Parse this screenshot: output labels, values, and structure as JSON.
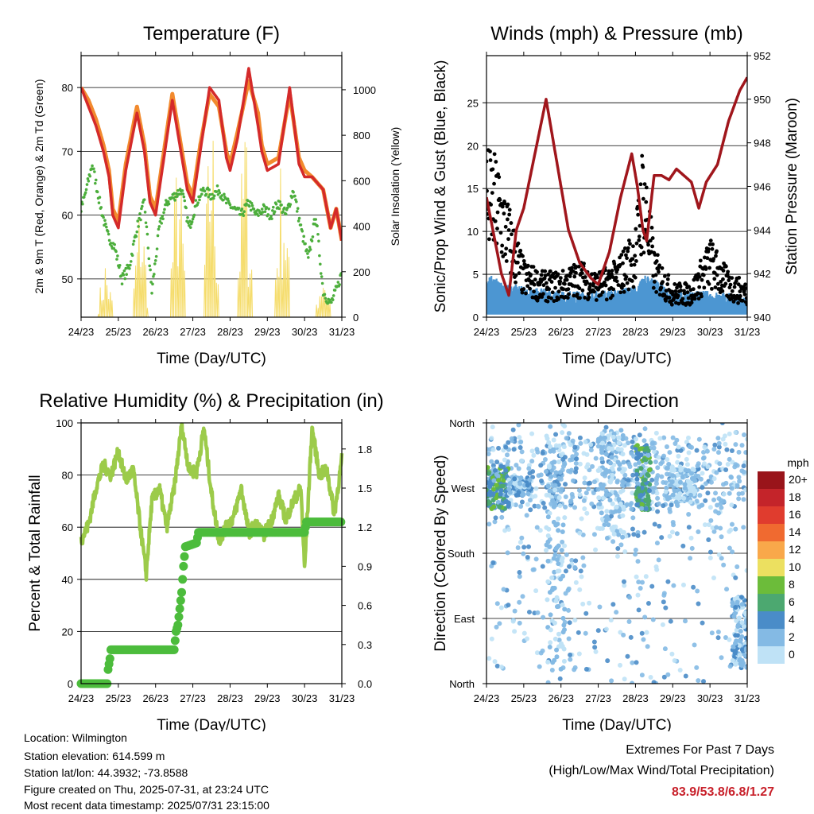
{
  "colors": {
    "temp_2m": "#d42a2a",
    "temp_9m": "#f28a2e",
    "dewpoint": "#4cae3c",
    "solar": "#f5dc6a",
    "wind_sonic": "#4c96d2",
    "gust": "#000000",
    "pressure": "#a0161c",
    "rh": "#9ccb4a",
    "precip": "#4cbc3c",
    "extremes": "#c8202a"
  },
  "chart_data": [
    {
      "type": "line",
      "title": "Temperature (F)",
      "xlabel": "Time (Day/UTC)",
      "ylabel": "2m & 9m T (Red, Orange) & 2m Td (Green)",
      "ylabel_right": "Solar Insolation (Yellow)",
      "x_ticks": [
        "24/23",
        "25/23",
        "26/23",
        "27/23",
        "28/23",
        "29/23",
        "30/23",
        "31/23"
      ],
      "xlim": [
        0,
        7
      ],
      "ylim": [
        44,
        85
      ],
      "y_ticks": [
        50,
        60,
        70,
        80
      ],
      "ylim_right": [
        0,
        1150
      ],
      "y_ticks_right": [
        0,
        200,
        400,
        600,
        800,
        1000
      ],
      "grid": "horizontal",
      "series": [
        {
          "name": "2m T",
          "axis": "left",
          "color_key": "temp_2m",
          "x": [
            0,
            0.2,
            0.4,
            0.6,
            0.75,
            0.85,
            1.0,
            1.2,
            1.5,
            1.7,
            1.85,
            2.0,
            2.2,
            2.45,
            2.65,
            2.85,
            3.0,
            3.2,
            3.45,
            3.7,
            3.9,
            4.0,
            4.2,
            4.5,
            4.75,
            4.85,
            5.0,
            5.3,
            5.6,
            5.85,
            6.0,
            6.2,
            6.5,
            6.7,
            6.85,
            7.0
          ],
          "y": [
            80,
            77,
            74,
            70,
            66,
            60,
            58,
            67,
            76,
            70,
            62,
            60,
            68,
            78,
            71,
            64,
            62,
            70,
            80,
            78,
            69,
            67,
            72,
            83,
            74,
            70,
            67,
            68,
            80,
            68,
            66,
            66,
            64,
            58,
            61,
            56
          ]
        },
        {
          "name": "9m T",
          "axis": "left",
          "color_key": "temp_9m",
          "x": [
            0,
            0.2,
            0.4,
            0.6,
            0.75,
            0.85,
            1.0,
            1.2,
            1.5,
            1.7,
            1.85,
            2.0,
            2.2,
            2.45,
            2.65,
            2.85,
            3.0,
            3.2,
            3.45,
            3.7,
            3.9,
            4.0,
            4.2,
            4.5,
            4.75,
            4.85,
            5.0,
            5.3,
            5.6,
            5.85,
            6.0,
            6.2,
            6.5,
            6.7,
            6.85,
            7.0
          ],
          "y": [
            80,
            78,
            75,
            71,
            67,
            61,
            59,
            68,
            77,
            71,
            63,
            61,
            69,
            79,
            72,
            65,
            63,
            71,
            79,
            77,
            70,
            68,
            73,
            81,
            76,
            71,
            68,
            69,
            79,
            69,
            67,
            66,
            64,
            58,
            61,
            56
          ]
        },
        {
          "name": "2m Td",
          "axis": "left",
          "color_key": "dewpoint",
          "x": [
            0,
            0.1,
            0.3,
            0.5,
            0.7,
            0.9,
            1.1,
            1.3,
            1.5,
            1.7,
            1.9,
            2.1,
            2.3,
            2.5,
            2.7,
            2.9,
            3.1,
            3.3,
            3.5,
            3.7,
            3.9,
            4.1,
            4.3,
            4.5,
            4.7,
            4.9,
            5.1,
            5.3,
            5.5,
            5.7,
            5.9,
            6.1,
            6.3,
            6.5,
            6.7,
            6.9,
            7.0
          ],
          "y": [
            61,
            63,
            68,
            62,
            57,
            55,
            50,
            52,
            58,
            62,
            48,
            58,
            62,
            63,
            64,
            58,
            62,
            64,
            63,
            64,
            62,
            61,
            60,
            62,
            60,
            61,
            60,
            62,
            60,
            64,
            58,
            53,
            60,
            48,
            46,
            49,
            51
          ]
        },
        {
          "name": "Solar",
          "axis": "right",
          "color_key": "solar",
          "peaks": [
            [
              0.65,
              280
            ],
            [
              1.6,
              620
            ],
            [
              2.6,
              880
            ],
            [
              3.5,
              1080
            ],
            [
              4.4,
              1000
            ],
            [
              5.4,
              850
            ],
            [
              6.5,
              280
            ]
          ]
        }
      ]
    },
    {
      "type": "scatter",
      "title": "Winds (mph) & Pressure (mb)",
      "xlabel": "Time (Day/UTC)",
      "ylabel": "Sonic/Prop Wind & Gust (Blue, Black)",
      "ylabel_right": "Station Pressure (Maroon)",
      "x_ticks": [
        "24/23",
        "25/23",
        "26/23",
        "27/23",
        "28/23",
        "29/23",
        "30/23",
        "31/23"
      ],
      "xlim": [
        0,
        7
      ],
      "ylim": [
        0,
        30.5
      ],
      "y_ticks": [
        0,
        5,
        10,
        15,
        20,
        25
      ],
      "ylim_right": [
        940,
        952
      ],
      "y_ticks_right": [
        940,
        942,
        944,
        946,
        948,
        950,
        952
      ],
      "grid": "horizontal",
      "gust_envelope": {
        "x": [
          0,
          0.3,
          0.6,
          1.0,
          1.5,
          2.0,
          2.5,
          3.0,
          3.5,
          4.0,
          4.2,
          4.5,
          5.0,
          5.5,
          6.0,
          6.5,
          7.0
        ],
        "y": [
          15,
          14,
          10,
          5,
          4,
          4,
          5,
          4,
          5,
          8,
          16,
          6,
          3,
          3,
          7,
          4,
          3
        ]
      },
      "wind_envelope": {
        "x": [
          0,
          0.5,
          1.0,
          2.0,
          3.0,
          4.0,
          4.3,
          5.0,
          6.0,
          7.0
        ],
        "y": [
          4,
          3,
          2.5,
          2,
          2,
          2.5,
          4,
          2,
          2,
          1.5
        ]
      },
      "series": [
        {
          "name": "Pressure",
          "axis": "right",
          "color_key": "pressure",
          "x": [
            0,
            0.4,
            0.6,
            0.8,
            1.0,
            1.3,
            1.6,
            1.9,
            2.2,
            2.5,
            2.8,
            3.0,
            3.3,
            3.6,
            3.9,
            4.05,
            4.2,
            4.3,
            4.5,
            4.7,
            4.9,
            5.1,
            5.3,
            5.5,
            5.7,
            5.9,
            6.2,
            6.5,
            6.8,
            7.0
          ],
          "y": [
            945.5,
            942,
            941,
            944,
            945,
            947.5,
            950,
            947,
            944,
            942.5,
            941.8,
            941.5,
            943,
            945.5,
            947.5,
            946,
            944,
            943.5,
            946.5,
            946.5,
            946.3,
            946.8,
            946.5,
            946.2,
            945,
            946.2,
            947,
            949,
            950.4,
            951
          ]
        }
      ]
    },
    {
      "type": "line",
      "title": "Relative Humidity (%) & Precipitation (in)",
      "xlabel": "Time (Day/UTC)",
      "ylabel": "Percent & Total Rainfall",
      "x_ticks": [
        "24/23",
        "25/23",
        "26/23",
        "27/23",
        "28/23",
        "29/23",
        "30/23",
        "31/23"
      ],
      "xlim": [
        0,
        7
      ],
      "ylim": [
        0,
        100
      ],
      "y_ticks": [
        0,
        20,
        40,
        60,
        80,
        100
      ],
      "ylim_right": [
        0,
        2.0
      ],
      "y_ticks_right": [
        "0.0",
        "0.3",
        "0.6",
        "0.9",
        "1.2",
        "1.5",
        "1.8"
      ],
      "grid": "horizontal",
      "series": [
        {
          "name": "RH",
          "axis": "left",
          "color_key": "rh",
          "x": [
            0,
            0.2,
            0.4,
            0.6,
            0.8,
            1.0,
            1.2,
            1.4,
            1.6,
            1.75,
            1.9,
            2.1,
            2.3,
            2.5,
            2.7,
            2.9,
            3.1,
            3.3,
            3.5,
            3.7,
            3.9,
            4.1,
            4.3,
            4.5,
            4.7,
            4.9,
            5.1,
            5.3,
            5.5,
            5.7,
            5.9,
            6.0,
            6.2,
            6.4,
            6.6,
            6.8,
            7.0
          ],
          "y": [
            55,
            61,
            75,
            84,
            80,
            89,
            78,
            82,
            59,
            42,
            70,
            75,
            60,
            75,
            99,
            82,
            81,
            98,
            73,
            55,
            60,
            64,
            75,
            58,
            61,
            57,
            62,
            72,
            63,
            70,
            75,
            44,
            98,
            80,
            82,
            65,
            86
          ]
        },
        {
          "name": "Precipitation",
          "axis": "right",
          "color_key": "precip",
          "x": [
            0,
            0.7,
            0.72,
            0.78,
            0.8,
            2.5,
            2.55,
            2.6,
            2.7,
            2.75,
            2.8,
            3.1,
            3.15,
            6.0,
            6.05,
            7.0
          ],
          "y": [
            0,
            0,
            0.1,
            0.2,
            0.26,
            0.26,
            0.4,
            0.45,
            0.7,
            0.9,
            1.05,
            1.08,
            1.16,
            1.16,
            1.24,
            1.24
          ]
        }
      ]
    },
    {
      "type": "scatter",
      "title": "Wind Direction",
      "xlabel": "Time (Day/UTC)",
      "ylabel": "Direction (Colored By Speed)",
      "x_ticks": [
        "24/23",
        "25/23",
        "26/23",
        "27/23",
        "28/23",
        "29/23",
        "30/23",
        "31/23"
      ],
      "xlim": [
        0,
        7
      ],
      "ylim": [
        0,
        360
      ],
      "y_ticks": [
        "North",
        "East",
        "South",
        "West",
        "North"
      ],
      "grid": "horizontal",
      "colorbar": {
        "unit": "mph",
        "labels": [
          "20+",
          "18",
          "16",
          "14",
          "12",
          "10",
          "8",
          "6",
          "4",
          "2",
          "0"
        ],
        "colors": [
          "#99141a",
          "#c4242a",
          "#e03c2e",
          "#f06a30",
          "#f9a84a",
          "#ece060",
          "#6cbc3a",
          "#4ca870",
          "#4a8cc8",
          "#84bae4",
          "#bfe2f6"
        ]
      },
      "clusters": [
        {
          "x": [
            0,
            0.6
          ],
          "dir": [
            240,
            300
          ],
          "speed": "4-8"
        },
        {
          "x": [
            0.6,
            1.2
          ],
          "dir": [
            260,
            285
          ],
          "speed": "2-4"
        },
        {
          "x": [
            1.6,
            2.1
          ],
          "dir": [
            20,
            360
          ],
          "speed": "0-4"
        },
        {
          "x": [
            3.0,
            3.7
          ],
          "dir": [
            200,
            350
          ],
          "speed": "0-4"
        },
        {
          "x": [
            4.0,
            4.4
          ],
          "dir": [
            240,
            330
          ],
          "speed": "4-8"
        },
        {
          "x": [
            4.8,
            5.6
          ],
          "dir": [
            250,
            300
          ],
          "speed": "0-2"
        },
        {
          "x": [
            6.6,
            7.0
          ],
          "dir": [
            20,
            120
          ],
          "speed": "2-4"
        }
      ]
    }
  ],
  "info": {
    "location": "Location: Wilmington",
    "elevation": "Station elevation: 614.599 m",
    "latlon": "Station lat/lon: 44.3932; -73.8588",
    "created": "Figure created on Thu, 2025-07-31, at 23:24 UTC",
    "recent": "Most recent data timestamp: 2025/07/31 23:15:00"
  },
  "extremes": {
    "heading": "Extremes For Past 7 Days",
    "subheading": "(High/Low/Max Wind/Total Precipitation)",
    "values": "83.9/53.8/6.8/1.27"
  }
}
